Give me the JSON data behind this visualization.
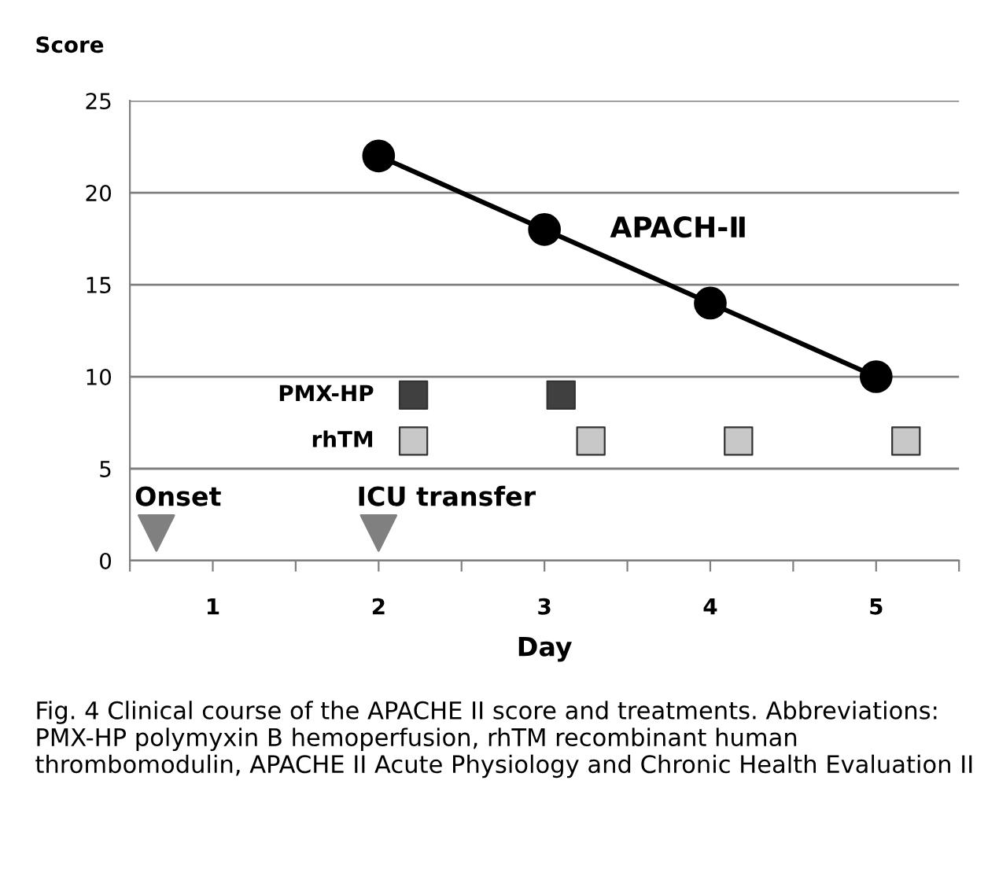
{
  "chart_data": {
    "type": "line",
    "ylabel": "Score",
    "xlabel": "Day",
    "xlim": [
      0.5,
      5.5
    ],
    "xticks": [
      {
        "value": 0.5,
        "label": null
      },
      {
        "value": 1,
        "label": "1"
      },
      {
        "value": 1.5,
        "label": null
      },
      {
        "value": 2,
        "label": "2"
      },
      {
        "value": 2.5,
        "label": null
      },
      {
        "value": 3,
        "label": "3"
      },
      {
        "value": 3.5,
        "label": null
      },
      {
        "value": 4,
        "label": "4"
      },
      {
        "value": 4.5,
        "label": null
      },
      {
        "value": 5,
        "label": "5"
      },
      {
        "value": 5.5,
        "label": null
      }
    ],
    "ylim": [
      0,
      25
    ],
    "yticks": [
      0,
      5,
      10,
      15,
      20,
      25
    ],
    "grid": "y",
    "series": [
      {
        "name": "APACH-Ⅱ",
        "marker": "circle",
        "color": "#000000",
        "x": [
          2,
          3,
          4,
          5
        ],
        "values": [
          22,
          18,
          14,
          10
        ]
      },
      {
        "name": "PMX-HP",
        "type": "scatter",
        "marker": "square",
        "color": "#404040",
        "x": [
          2.21,
          3.1
        ],
        "values": [
          9,
          9
        ]
      },
      {
        "name": "rhTM",
        "type": "scatter",
        "marker": "square",
        "color": "#c8c8c8",
        "x": [
          2.21,
          3.28,
          4.17,
          5.18
        ],
        "values": [
          6.5,
          6.5,
          6.5,
          6.5
        ]
      },
      {
        "name": "Onset",
        "type": "scatter",
        "marker": "triangle",
        "color": "#808080",
        "x": [
          0.66
        ],
        "values": [
          1.5
        ]
      },
      {
        "name": "ICU transfer",
        "type": "scatter",
        "marker": "triangle",
        "color": "#808080",
        "x": [
          2.0
        ],
        "values": [
          1.5
        ]
      }
    ],
    "annotations": [
      "Fig. 4 Clinical course of the APACHE II score and treatments. Abbreviations: PMX-HP polymyxin B hemoperfusion, rhTM recombinant human thrombomodulin, APACHE II Acute Physiology and Chronic Health Evaluation II"
    ]
  }
}
